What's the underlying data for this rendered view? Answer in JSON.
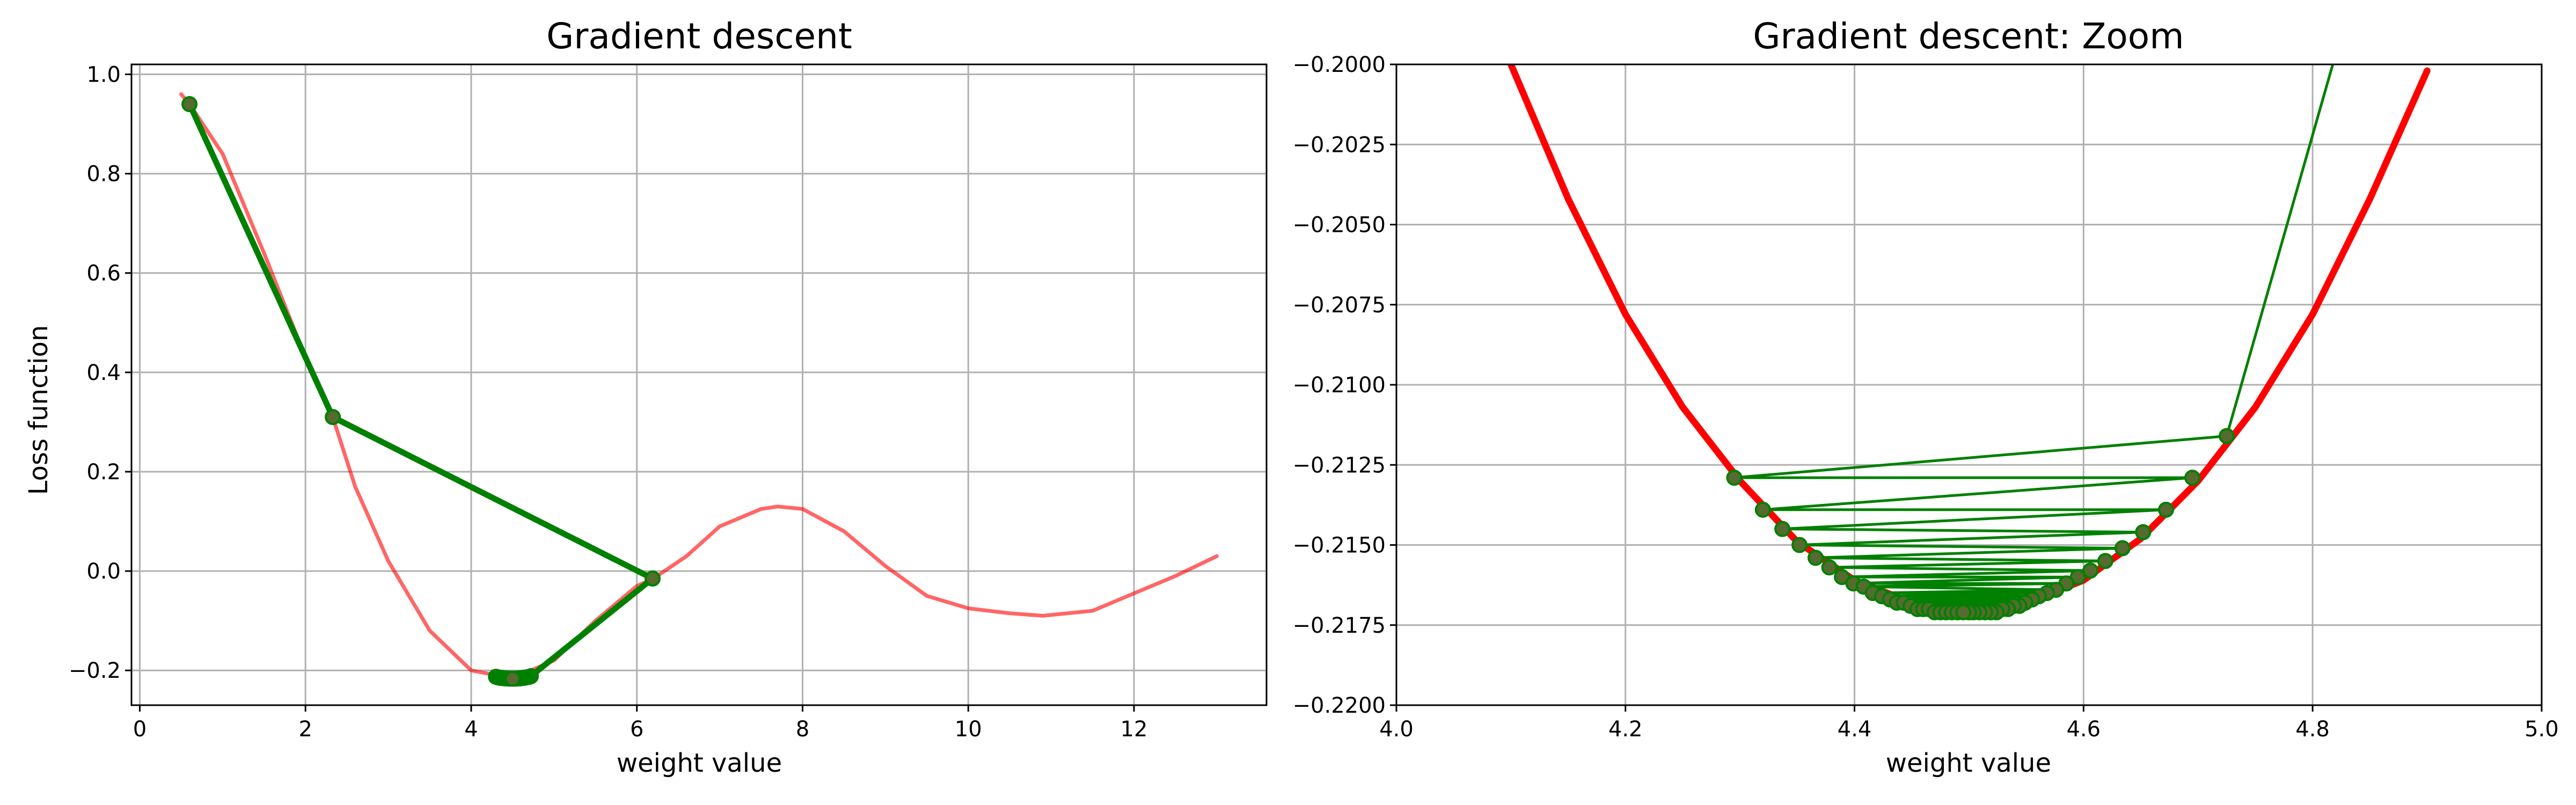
{
  "colors": {
    "loss_curve": "#ff0000",
    "descent_path": "#008000",
    "marker_fill": "#556b2f",
    "grid": "#b0b0b0"
  },
  "chart_data": [
    {
      "type": "line",
      "title": "Gradient descent",
      "xlabel": "weight value",
      "ylabel": "Loss function",
      "xlim": [
        -0.1,
        13.6
      ],
      "ylim": [
        -0.27,
        1.02
      ],
      "xticks": [
        0,
        2,
        4,
        6,
        8,
        10,
        12
      ],
      "xtick_labels": [
        "0",
        "2",
        "4",
        "6",
        "8",
        "10",
        "12"
      ],
      "yticks": [
        -0.2,
        0.0,
        0.2,
        0.4,
        0.6,
        0.8,
        1.0
      ],
      "ytick_labels": [
        "−0.2",
        "0.0",
        "0.2",
        "0.4",
        "0.6",
        "0.8",
        "1.0"
      ],
      "grid": true,
      "series": [
        {
          "kind": "curve",
          "color": "#ff0000",
          "opacity": 0.6,
          "x": [
            0.5,
            0.6,
            1.0,
            1.5,
            2.0,
            2.33,
            2.6,
            3.0,
            3.5,
            4.0,
            4.5,
            5.0,
            5.5,
            6.0,
            6.2,
            6.6,
            7.0,
            7.5,
            7.7,
            8.0,
            8.5,
            9.0,
            9.5,
            10.0,
            10.5,
            10.9,
            11.5,
            12.0,
            12.5,
            13.0
          ],
          "y": [
            0.96,
            0.94,
            0.84,
            0.64,
            0.43,
            0.31,
            0.17,
            0.02,
            -0.12,
            -0.2,
            -0.216,
            -0.18,
            -0.1,
            -0.03,
            -0.015,
            0.03,
            0.09,
            0.125,
            0.13,
            0.125,
            0.08,
            0.01,
            -0.05,
            -0.075,
            -0.085,
            -0.09,
            -0.08,
            -0.045,
            -0.01,
            0.03
          ]
        },
        {
          "kind": "path",
          "color": "#008000",
          "markers": true,
          "x": [
            0.6,
            2.33,
            6.19,
            4.72,
            4.3,
            4.7,
            4.32,
            4.67,
            4.34,
            4.65,
            4.36,
            4.63,
            4.38,
            4.61,
            4.4,
            4.59,
            4.42,
            4.58,
            4.44,
            4.56,
            4.46,
            4.54,
            4.48,
            4.52,
            4.5
          ],
          "y": [
            0.94,
            0.31,
            -0.015,
            -0.2116,
            -0.2129,
            -0.2129,
            -0.2139,
            -0.2139,
            -0.2146,
            -0.2146,
            -0.2151,
            -0.2151,
            -0.2155,
            -0.2155,
            -0.2158,
            -0.2158,
            -0.2161,
            -0.2161,
            -0.2163,
            -0.2163,
            -0.2164,
            -0.2164,
            -0.2165,
            -0.2165,
            -0.2166
          ]
        }
      ]
    },
    {
      "type": "line",
      "title": "Gradient descent: Zoom",
      "xlabel": "weight value",
      "ylabel": "",
      "xlim": [
        4.0,
        5.0
      ],
      "ylim": [
        -0.22,
        -0.2
      ],
      "xticks": [
        4.0,
        4.2,
        4.4,
        4.6,
        4.8,
        5.0
      ],
      "xtick_labels": [
        "4.0",
        "4.2",
        "4.4",
        "4.6",
        "4.8",
        "5.0"
      ],
      "yticks": [
        -0.22,
        -0.2175,
        -0.215,
        -0.2125,
        -0.21,
        -0.2075,
        -0.205,
        -0.2025,
        -0.2
      ],
      "ytick_labels": [
        "−0.2200",
        "−0.2175",
        "−0.2150",
        "−0.2125",
        "−0.2100",
        "−0.2075",
        "−0.2050",
        "−0.2025",
        "−0.2000"
      ],
      "grid": true,
      "series": [
        {
          "kind": "curve",
          "color": "#ff0000",
          "opacity": 1.0,
          "width_scale": 1.8,
          "x": [
            4.1,
            4.15,
            4.2,
            4.25,
            4.3,
            4.35,
            4.4,
            4.45,
            4.5,
            4.55,
            4.6,
            4.65,
            4.7,
            4.75,
            4.8,
            4.85,
            4.9
          ],
          "y": [
            -0.2,
            -0.2042,
            -0.2078,
            -0.2107,
            -0.213,
            -0.2149,
            -0.2161,
            -0.2168,
            -0.2171,
            -0.2168,
            -0.2161,
            -0.2148,
            -0.213,
            -0.2107,
            -0.2078,
            -0.2042,
            -0.2002
          ]
        },
        {
          "kind": "path",
          "color": "#008000",
          "markers": true,
          "x": [
            4.82,
            4.725,
            4.295,
            4.695,
            4.32,
            4.672,
            4.337,
            4.652,
            4.352,
            4.634,
            4.366,
            4.619,
            4.378,
            4.606,
            4.389,
            4.595,
            4.399,
            4.585,
            4.408,
            4.576,
            4.416,
            4.568,
            4.424,
            4.561,
            4.431,
            4.555,
            4.437,
            4.549,
            4.443,
            4.544,
            4.449,
            4.539,
            4.455,
            4.534,
            4.46,
            4.529,
            4.465,
            4.524,
            4.47,
            4.519,
            4.475,
            4.514,
            4.48,
            4.509,
            4.485,
            4.504,
            4.49,
            4.5,
            4.495
          ],
          "y": [
            -0.1997,
            -0.2116,
            -0.2129,
            -0.2129,
            -0.2139,
            -0.2139,
            -0.2145,
            -0.2146,
            -0.215,
            -0.2151,
            -0.2154,
            -0.2155,
            -0.2157,
            -0.2158,
            -0.216,
            -0.216,
            -0.2162,
            -0.2162,
            -0.2163,
            -0.2164,
            -0.2165,
            -0.2165,
            -0.2166,
            -0.2166,
            -0.2167,
            -0.2167,
            -0.2168,
            -0.2168,
            -0.2168,
            -0.2169,
            -0.2169,
            -0.2169,
            -0.217,
            -0.217,
            -0.217,
            -0.217,
            -0.217,
            -0.2171,
            -0.2171,
            -0.2171,
            -0.2171,
            -0.2171,
            -0.2171,
            -0.2171,
            -0.2171,
            -0.2171,
            -0.2171,
            -0.2171,
            -0.2171
          ]
        }
      ]
    }
  ]
}
